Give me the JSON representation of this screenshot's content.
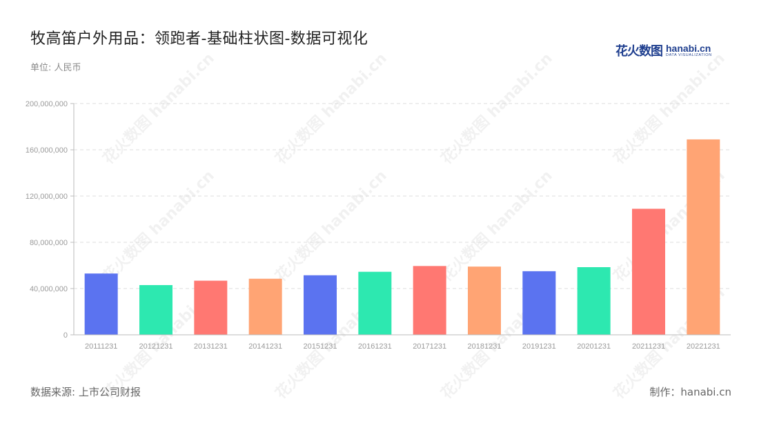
{
  "header": {
    "title": "牧高笛户外用品：领跑者-基础柱状图-数据可视化",
    "unit": "单位: 人民币"
  },
  "logo": {
    "cn": "花火数图",
    "en": "hanabi.cn",
    "en_sub": "DATA VISUALIZATION"
  },
  "footer": {
    "source": "数据来源: 上市公司财报",
    "maker": "制作：hanabi.cn"
  },
  "watermark": {
    "text": "花火数图 hanabi.cn"
  },
  "chart_data": {
    "type": "bar",
    "categories": [
      "20111231",
      "20121231",
      "20131231",
      "20141231",
      "20151231",
      "20161231",
      "20171231",
      "20181231",
      "20191231",
      "20201231",
      "20211231",
      "20221231"
    ],
    "values": [
      53000000,
      43000000,
      46800000,
      48500000,
      51500000,
      54500000,
      59500000,
      59000000,
      55000000,
      58500000,
      109000000,
      169000000
    ],
    "colors": [
      "#5b73f0",
      "#2de8b0",
      "#ff7872",
      "#ffa474",
      "#5b73f0",
      "#2de8b0",
      "#ff7872",
      "#ffa474",
      "#5b73f0",
      "#2de8b0",
      "#ff7872",
      "#ffa474"
    ],
    "ylim": [
      0,
      200000000
    ],
    "yticks": [
      0,
      40000000,
      80000000,
      120000000,
      160000000,
      200000000
    ],
    "ytick_labels": [
      "0",
      "40,000,000",
      "80,000,000",
      "120,000,000",
      "160,000,000",
      "200,000,000"
    ],
    "grid": true,
    "legend": "none"
  }
}
